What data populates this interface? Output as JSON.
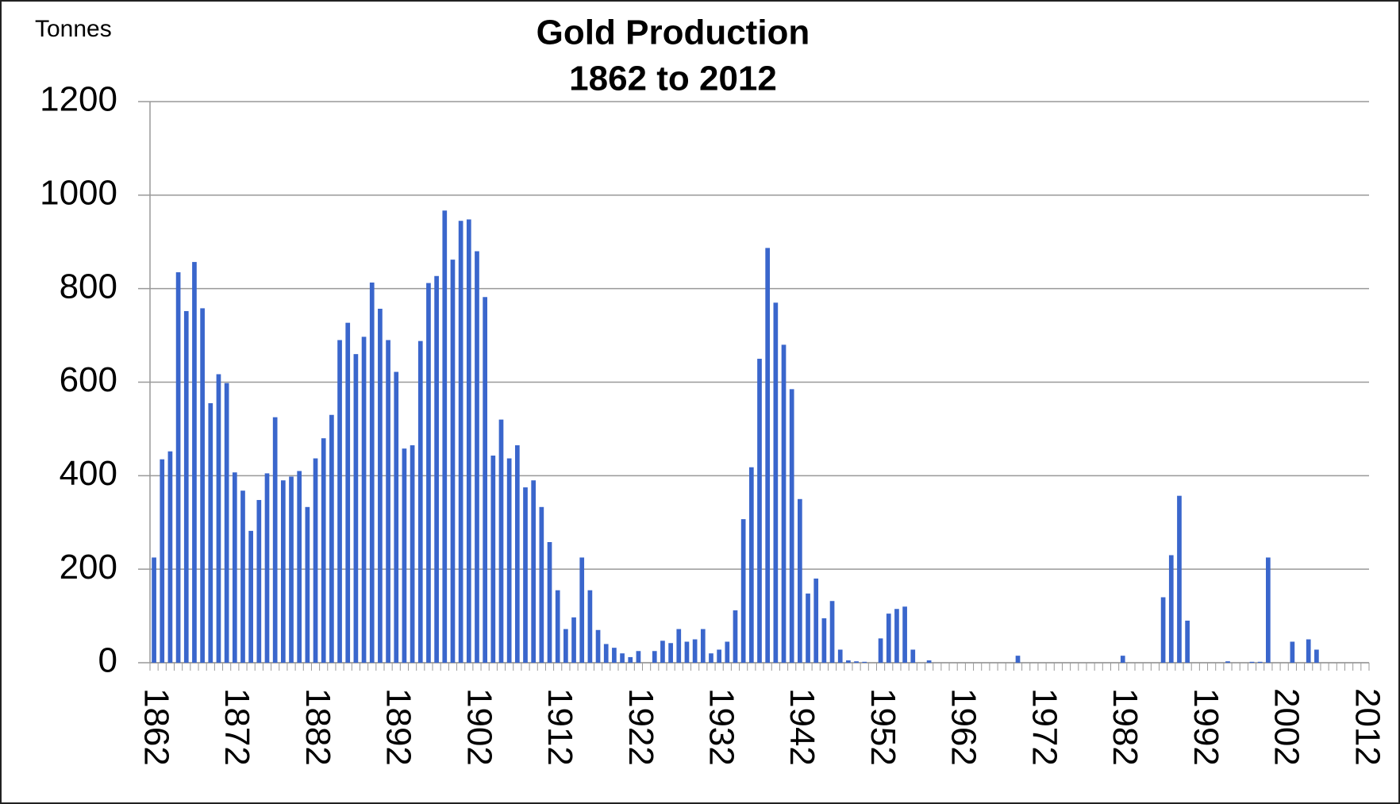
{
  "chart_data": {
    "type": "bar",
    "title": "Gold Production",
    "subtitle": "1862 to 2012",
    "y_label": "Tonnes",
    "categories": [
      "1862",
      null,
      null,
      null,
      null,
      null,
      null,
      null,
      null,
      null,
      "1872",
      null,
      null,
      null,
      null,
      null,
      null,
      null,
      null,
      null,
      "1882",
      null,
      null,
      null,
      null,
      null,
      null,
      null,
      null,
      null,
      "1892",
      null,
      null,
      null,
      null,
      null,
      null,
      null,
      null,
      null,
      "1902",
      null,
      null,
      null,
      null,
      null,
      null,
      null,
      null,
      null,
      "1912",
      null,
      null,
      null,
      null,
      null,
      null,
      null,
      null,
      null,
      "1922",
      null,
      null,
      null,
      null,
      null,
      null,
      null,
      null,
      null,
      "1932",
      null,
      null,
      null,
      null,
      null,
      null,
      null,
      null,
      null,
      "1942",
      null,
      null,
      null,
      null,
      null,
      null,
      null,
      null,
      null,
      "1952",
      null,
      null,
      null,
      null,
      null,
      null,
      null,
      null,
      null,
      "1962",
      null,
      null,
      null,
      null,
      null,
      null,
      null,
      null,
      null,
      "1972",
      null,
      null,
      null,
      null,
      null,
      null,
      null,
      null,
      null,
      "1982",
      null,
      null,
      null,
      null,
      null,
      null,
      null,
      null,
      null,
      "1992",
      null,
      null,
      null,
      null,
      null,
      null,
      null,
      null,
      null,
      "2002",
      null,
      null,
      null,
      null,
      null,
      null,
      null,
      null,
      null,
      "2012"
    ],
    "values": [
      225,
      435,
      452,
      835,
      752,
      857,
      758,
      555,
      617,
      598,
      407,
      368,
      282,
      348,
      405,
      525,
      390,
      398,
      410,
      333,
      437,
      480,
      530,
      690,
      727,
      660,
      697,
      813,
      757,
      690,
      622,
      458,
      465,
      688,
      812,
      827,
      967,
      862,
      945,
      948,
      880,
      782,
      443,
      520,
      437,
      465,
      375,
      390,
      333,
      258,
      155,
      72,
      97,
      225,
      155,
      70,
      40,
      32,
      20,
      12,
      25,
      0,
      25,
      47,
      42,
      72,
      45,
      50,
      72,
      20,
      28,
      45,
      112,
      307,
      418,
      650,
      887,
      770,
      680,
      585,
      350,
      148,
      180,
      95,
      132,
      28,
      5,
      3,
      2,
      0,
      52,
      105,
      115,
      120,
      28,
      0,
      5,
      0,
      0,
      0,
      0,
      0,
      0,
      0,
      0,
      0,
      0,
      15,
      0,
      0,
      0,
      0,
      0,
      0,
      0,
      0,
      0,
      0,
      0,
      0,
      15,
      0,
      0,
      0,
      0,
      140,
      230,
      357,
      90,
      0,
      0,
      0,
      0,
      3,
      0,
      0,
      2,
      2,
      225,
      0,
      0,
      45,
      0,
      50,
      28,
      0,
      0,
      0,
      0,
      0,
      0
    ],
    "color": "#3a66cc",
    "ylim": [
      0,
      1200
    ],
    "yticks": [
      0,
      200,
      400,
      600,
      800,
      1000,
      1200
    ],
    "grid": true
  }
}
